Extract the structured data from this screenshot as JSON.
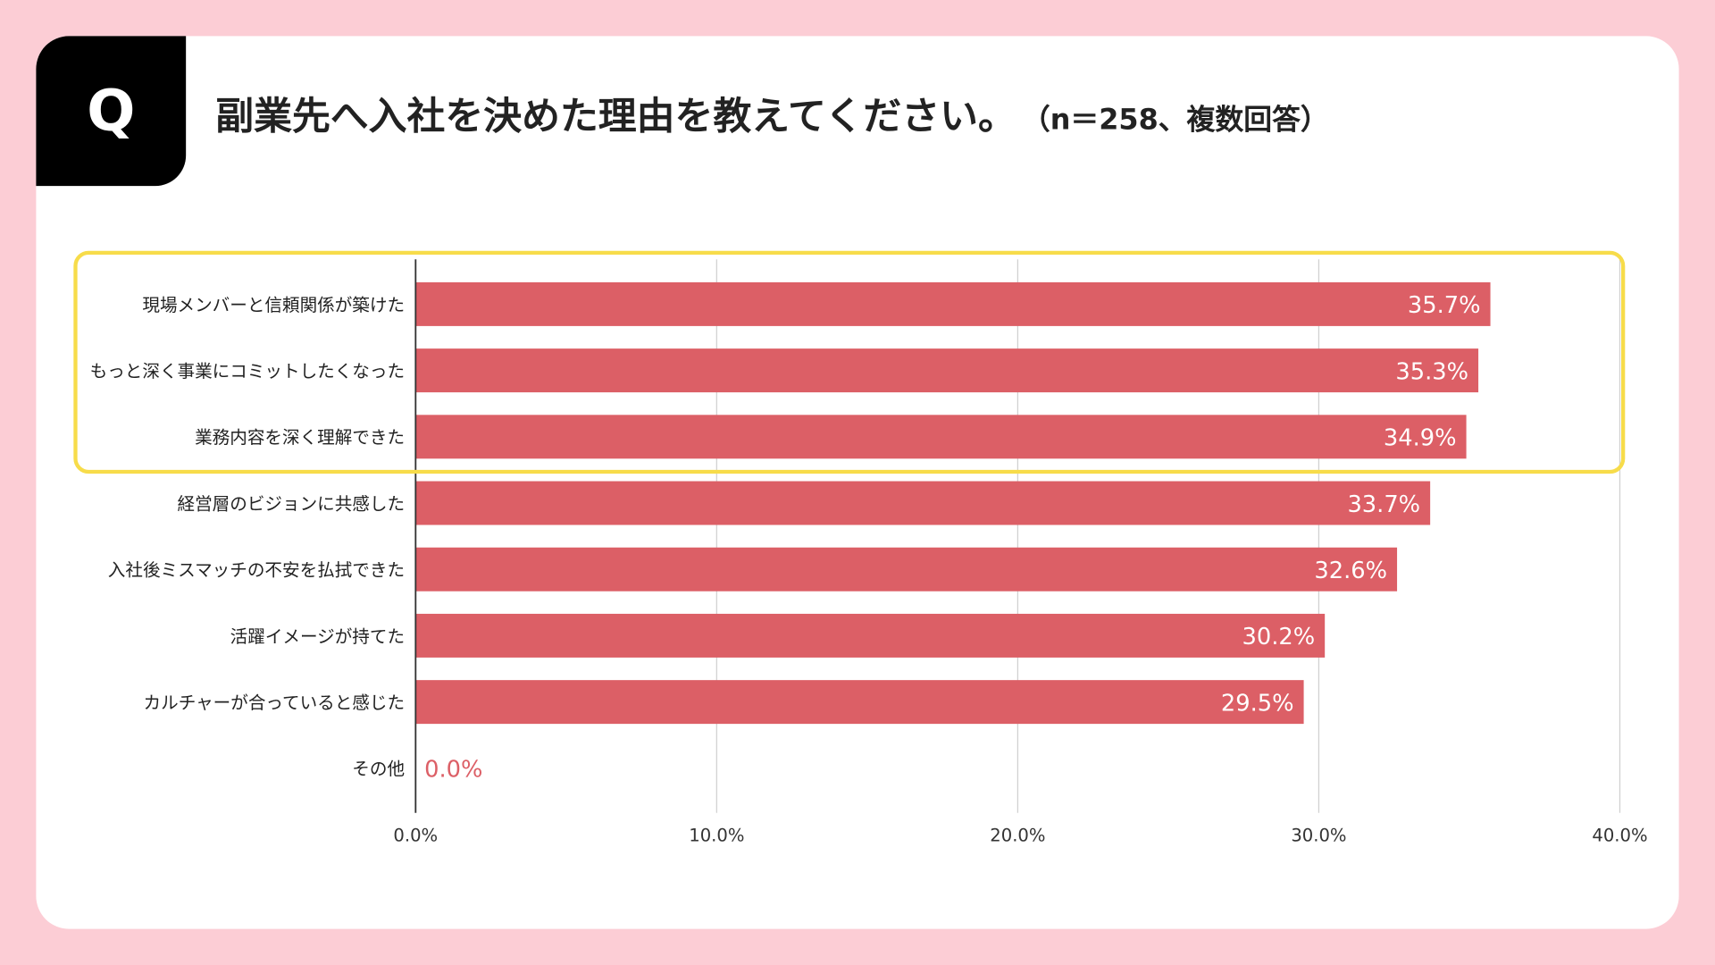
{
  "header": {
    "q_label": "Q",
    "title": "副業先へ入社を決めた理由を教えてください。",
    "subtitle": "（n＝258、複数回答）"
  },
  "colors": {
    "background": "#fccdd5",
    "bar": "#dc5f66",
    "highlight": "#f7dc4a",
    "zero_label": "#dc5f66"
  },
  "chart_data": {
    "type": "bar",
    "orientation": "horizontal",
    "categories": [
      "現場メンバーと信頼関係が築けた",
      "もっと深く事業にコミットしたくなった",
      "業務内容を深く理解できた",
      "経営層のビジョンに共感した",
      "入社後ミスマッチの不安を払拭できた",
      "活躍イメージが持てた",
      "カルチャーが合っていると感じた",
      "その他"
    ],
    "values": [
      35.7,
      35.3,
      34.9,
      33.7,
      32.6,
      30.2,
      29.5,
      0.0
    ],
    "data_labels": [
      "35.7%",
      "35.3%",
      "34.9%",
      "33.7%",
      "32.6%",
      "30.2%",
      "29.5%",
      "0.0%"
    ],
    "xlim": [
      0,
      40
    ],
    "x_ticks": [
      "0.0%",
      "10.0%",
      "20.0%",
      "30.0%",
      "40.0%"
    ],
    "grid": true,
    "highlighted_categories": [
      0,
      1,
      2
    ]
  }
}
